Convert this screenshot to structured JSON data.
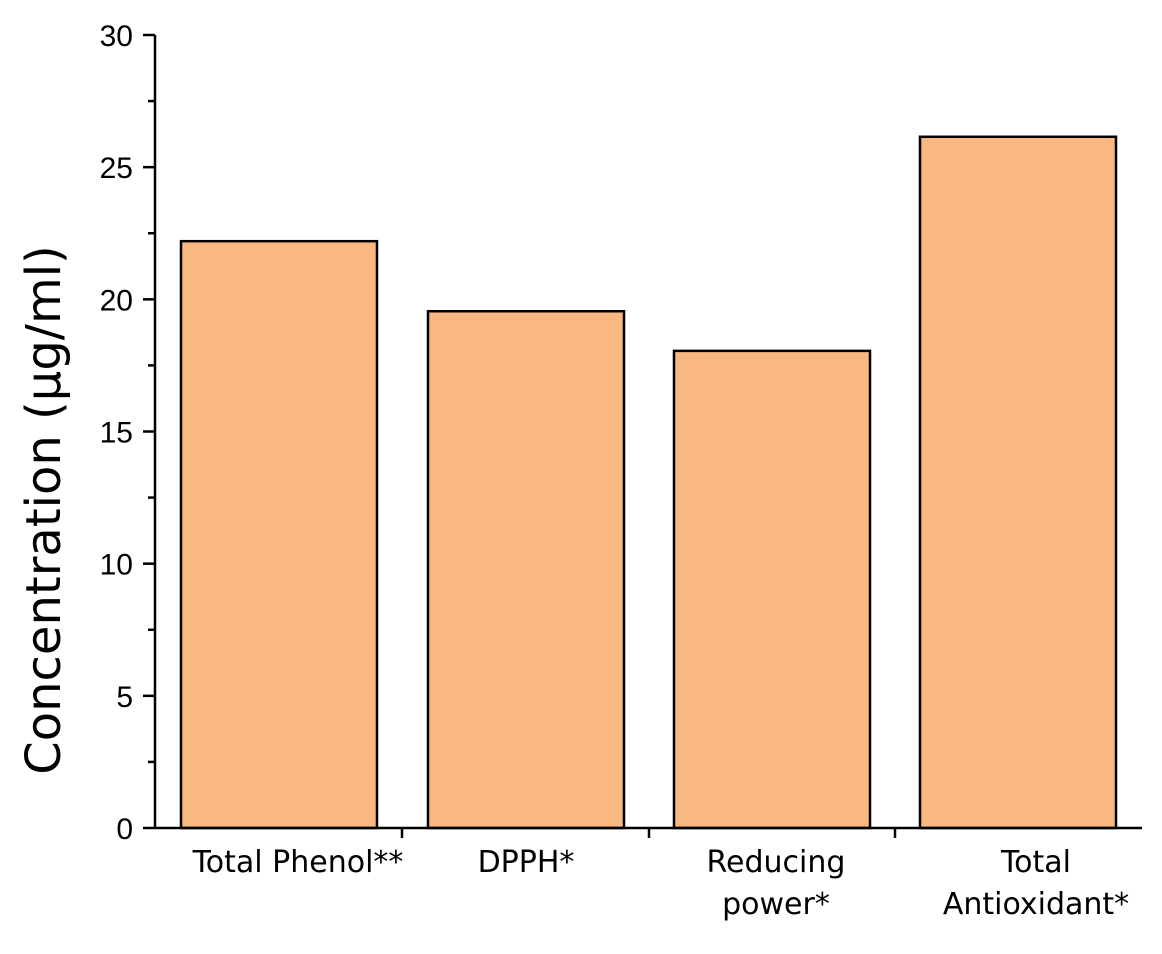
{
  "chart_data": {
    "type": "bar",
    "categories": [
      [
        "Total Phenol**"
      ],
      [
        "DPPH*"
      ],
      [
        "Reducing",
        "power*"
      ],
      [
        "Total",
        "Antioxidant*"
      ]
    ],
    "values": [
      22.2,
      19.55,
      18.05,
      26.15
    ],
    "title": "",
    "xlabel": "",
    "ylabel": "Concentration (µg/ml)",
    "ylim": [
      0,
      30
    ],
    "yticks": [
      "0",
      "5",
      "10",
      "15",
      "20",
      "25",
      "30"
    ],
    "grid": false,
    "bar_color": "#f9b880",
    "edge_color": "#000000"
  }
}
